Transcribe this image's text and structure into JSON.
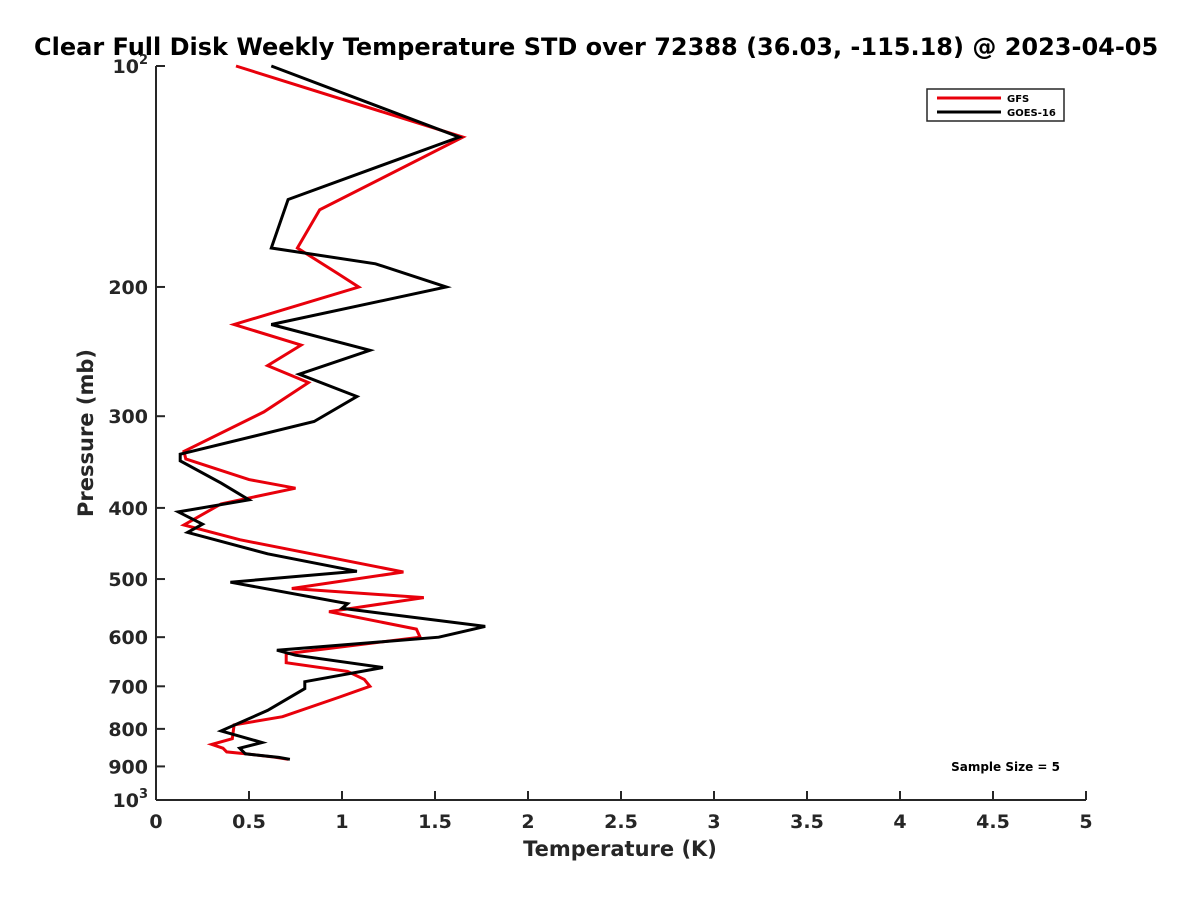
{
  "chart_data": {
    "type": "line",
    "title": "Clear Full Disk Weekly Temperature STD over 72388 (36.03, -115.18) @ 2023-04-05",
    "xlabel": "Temperature (K)",
    "ylabel": "Pressure (mb)",
    "xlim": [
      0,
      5
    ],
    "ylim": [
      100,
      1000
    ],
    "y_scale": "log",
    "y_reversed": true,
    "x_ticks": [
      {
        "value": 0,
        "label": "0"
      },
      {
        "value": 0.5,
        "label": "0.5"
      },
      {
        "value": 1,
        "label": "1"
      },
      {
        "value": 1.5,
        "label": "1.5"
      },
      {
        "value": 2,
        "label": "2"
      },
      {
        "value": 2.5,
        "label": "2.5"
      },
      {
        "value": 3,
        "label": "3"
      },
      {
        "value": 3.5,
        "label": "3.5"
      },
      {
        "value": 4,
        "label": "4"
      },
      {
        "value": 4.5,
        "label": "4.5"
      },
      {
        "value": 5,
        "label": "5"
      }
    ],
    "y_ticks": [
      {
        "value": 100,
        "base": "10",
        "exp": "2"
      },
      {
        "value": 200,
        "label": "200"
      },
      {
        "value": 300,
        "label": "300"
      },
      {
        "value": 400,
        "label": "400"
      },
      {
        "value": 500,
        "label": "500"
      },
      {
        "value": 600,
        "label": "600"
      },
      {
        "value": 700,
        "label": "700"
      },
      {
        "value": 800,
        "label": "800"
      },
      {
        "value": 900,
        "label": "900"
      },
      {
        "value": 1000,
        "base": "10",
        "exp": "3"
      }
    ],
    "grid": false,
    "legend": "top-right",
    "annotation": "Sample Size = 5",
    "series": [
      {
        "name": "GFS",
        "color": "#e8000b",
        "points": [
          [
            0.43,
            100
          ],
          [
            1.65,
            125
          ],
          [
            0.88,
            157
          ],
          [
            0.76,
            177
          ],
          [
            0.98,
            192
          ],
          [
            1.09,
            200
          ],
          [
            0.42,
            225
          ],
          [
            0.78,
            240
          ],
          [
            0.6,
            256
          ],
          [
            0.82,
            270
          ],
          [
            0.58,
            296
          ],
          [
            0.15,
            335
          ],
          [
            0.16,
            343
          ],
          [
            0.5,
            366
          ],
          [
            0.75,
            376
          ],
          [
            0.35,
            395
          ],
          [
            0.15,
            422
          ],
          [
            0.45,
            442
          ],
          [
            1.33,
            489
          ],
          [
            0.73,
            515
          ],
          [
            1.44,
            530
          ],
          [
            0.93,
            554
          ],
          [
            1.4,
            585
          ],
          [
            1.42,
            600
          ],
          [
            0.7,
            632
          ],
          [
            0.7,
            650
          ],
          [
            1.03,
            668
          ],
          [
            1.12,
            685
          ],
          [
            1.15,
            700
          ],
          [
            0.98,
            725
          ],
          [
            0.68,
            770
          ],
          [
            0.42,
            790
          ],
          [
            0.41,
            825
          ],
          [
            0.3,
            840
          ],
          [
            0.36,
            850
          ],
          [
            0.38,
            860
          ],
          [
            0.48,
            865
          ],
          [
            0.62,
            873
          ],
          [
            0.71,
            880
          ]
        ]
      },
      {
        "name": "GOES-16",
        "color": "#000000",
        "points": [
          [
            0.62,
            100
          ],
          [
            1.63,
            125
          ],
          [
            0.71,
            152
          ],
          [
            0.62,
            177
          ],
          [
            1.18,
            186
          ],
          [
            1.56,
            200
          ],
          [
            0.62,
            225
          ],
          [
            1.15,
            244
          ],
          [
            0.77,
            263
          ],
          [
            1.08,
            282
          ],
          [
            0.85,
            305
          ],
          [
            0.13,
            338
          ],
          [
            0.13,
            345
          ],
          [
            0.35,
            370
          ],
          [
            0.5,
            390
          ],
          [
            0.12,
            405
          ],
          [
            0.25,
            421
          ],
          [
            0.17,
            432
          ],
          [
            0.6,
            462
          ],
          [
            1.08,
            488
          ],
          [
            0.4,
            505
          ],
          [
            1.03,
            540
          ],
          [
            1.0,
            548
          ],
          [
            1.77,
            580
          ],
          [
            1.52,
            600
          ],
          [
            0.65,
            625
          ],
          [
            0.75,
            635
          ],
          [
            1.22,
            660
          ],
          [
            0.8,
            690
          ],
          [
            0.8,
            705
          ],
          [
            0.6,
            755
          ],
          [
            0.35,
            805
          ],
          [
            0.57,
            835
          ],
          [
            0.45,
            850
          ],
          [
            0.48,
            865
          ],
          [
            0.66,
            875
          ],
          [
            0.72,
            880
          ]
        ]
      }
    ]
  }
}
